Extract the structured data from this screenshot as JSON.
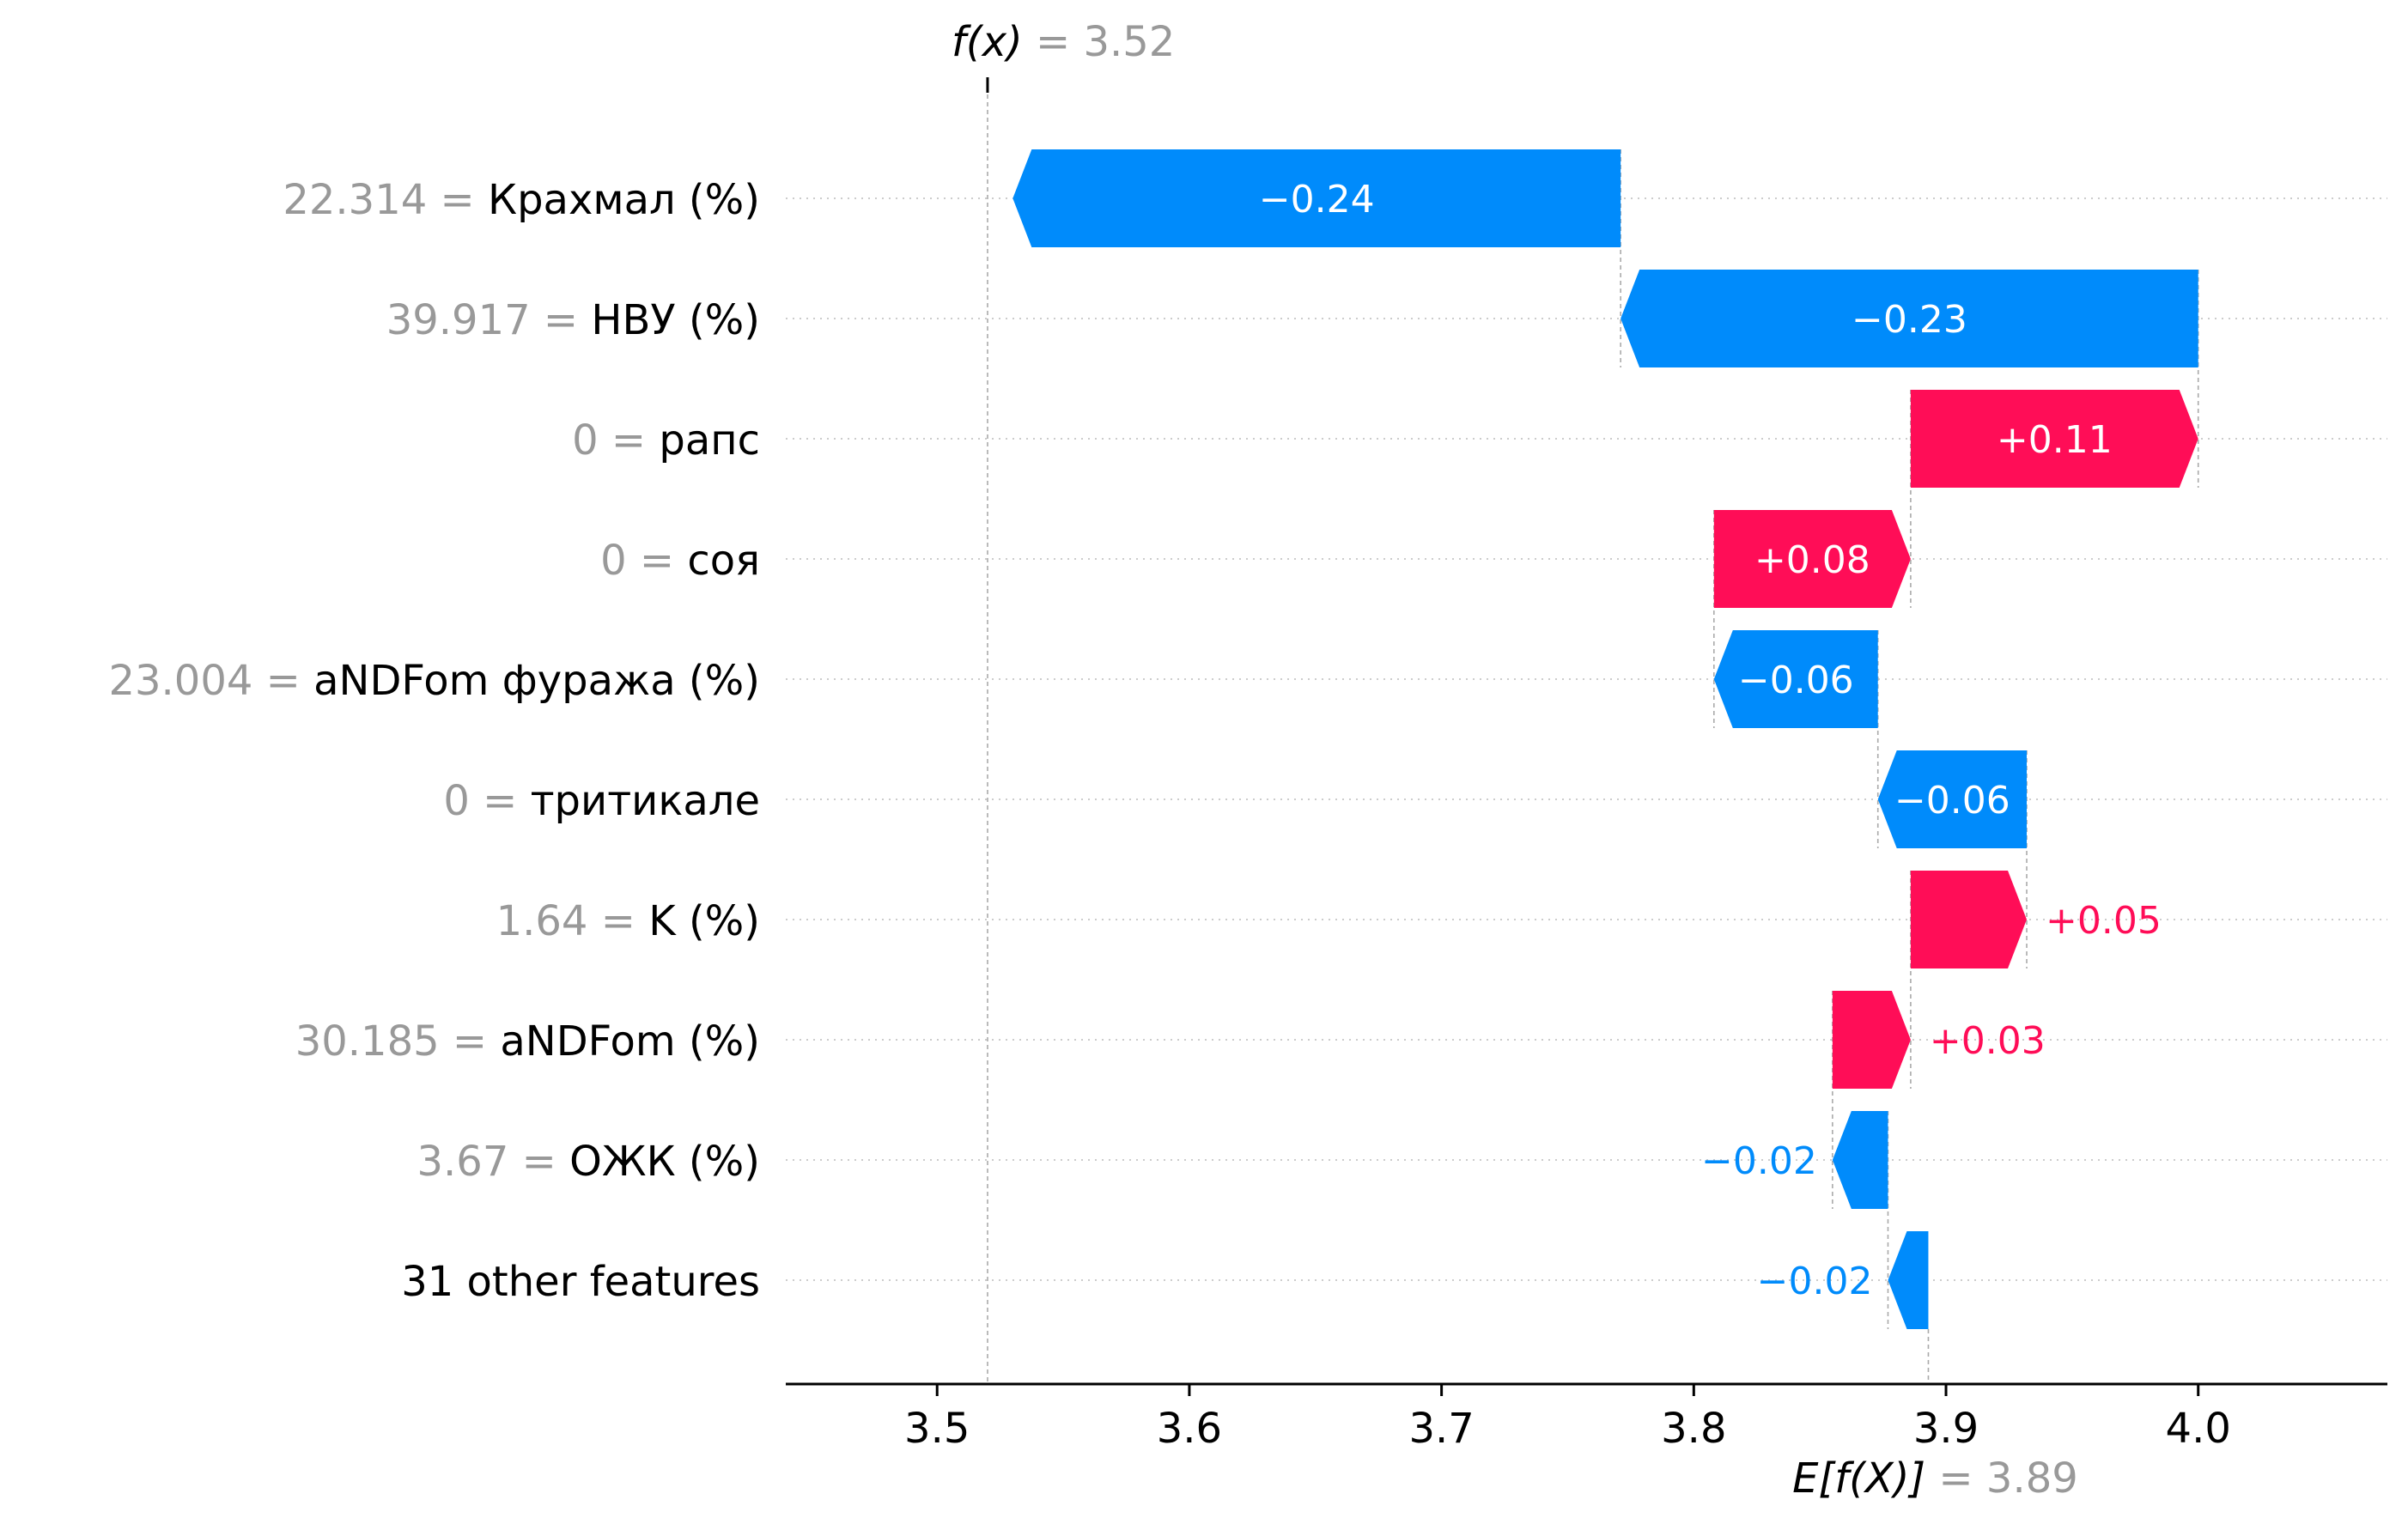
{
  "chart_data": {
    "type": "waterfall",
    "fx_label": "f(x)",
    "fx_value": "= 3.52",
    "fx": 3.52,
    "base_label": "E[f(X)]",
    "base_value": "= 3.89",
    "base": 3.893,
    "xlim": [
      3.44,
      4.075
    ],
    "x_ticks": [
      3.5,
      3.6,
      3.7,
      3.8,
      3.9,
      4.0
    ],
    "x_tick_labels": [
      "3.5",
      "3.6",
      "3.7",
      "3.8",
      "3.9",
      "4.0"
    ],
    "features": [
      {
        "value": "22.314 =",
        "name": "Крахмал (%)",
        "contribution": -0.241,
        "label": "−0.24"
      },
      {
        "value": "39.917 =",
        "name": "НВУ (%)",
        "contribution": -0.229,
        "label": "−0.23"
      },
      {
        "value": "0 =",
        "name": "рапс",
        "contribution": 0.114,
        "label": "+0.11"
      },
      {
        "value": "0 =",
        "name": "соя",
        "contribution": 0.078,
        "label": "+0.08"
      },
      {
        "value": "23.004 =",
        "name": "aNDFom фуража (%)",
        "contribution": -0.065,
        "label": "−0.06"
      },
      {
        "value": "0 =",
        "name": "тритикале",
        "contribution": -0.059,
        "label": "−0.06"
      },
      {
        "value": "1.64 =",
        "name": "K (%)",
        "contribution": 0.046,
        "label": "+0.05"
      },
      {
        "value": "30.185 =",
        "name": "aNDFom (%)",
        "contribution": 0.031,
        "label": "+0.03"
      },
      {
        "value": "3.67 =",
        "name": "ОЖК (%)",
        "contribution": -0.022,
        "label": "−0.02"
      },
      {
        "value": "",
        "name": "31 other features",
        "contribution": -0.016,
        "label": "−0.02"
      }
    ],
    "colors": {
      "positive": "#ff0d57",
      "negative": "#008bfb",
      "value_gray": "#999999",
      "text": "#000000"
    }
  }
}
